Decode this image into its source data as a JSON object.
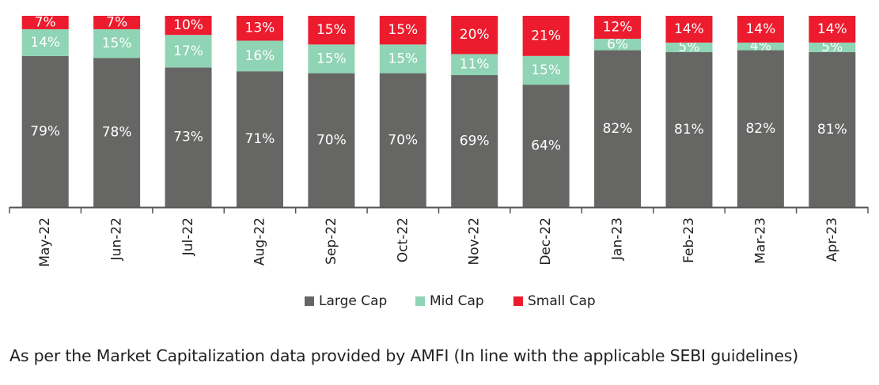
{
  "colors": {
    "large_cap": "#666665",
    "mid_cap": "#8fd4b4",
    "small_cap": "#ec1c2e",
    "axis": "#555555"
  },
  "chart_data": {
    "type": "bar",
    "stacked": true,
    "percent_stacked": true,
    "categories": [
      "May-22",
      "Jun-22",
      "Jul-22",
      "Aug-22",
      "Sep-22",
      "Oct-22",
      "Nov-22",
      "Dec-22",
      "Jan-23",
      "Feb-23",
      "Mar-23",
      "Apr-23"
    ],
    "series": [
      {
        "name": "Large Cap",
        "values": [
          79,
          78,
          73,
          71,
          70,
          70,
          69,
          64,
          82,
          81,
          82,
          81
        ]
      },
      {
        "name": "Mid Cap",
        "values": [
          14,
          15,
          17,
          16,
          15,
          15,
          11,
          15,
          6,
          5,
          4,
          5
        ]
      },
      {
        "name": "Small Cap",
        "values": [
          7,
          7,
          10,
          13,
          15,
          15,
          20,
          21,
          12,
          14,
          14,
          14
        ]
      }
    ],
    "ylim": [
      0,
      100
    ],
    "grid": false,
    "legend_position": "bottom",
    "xlabel_rotation": "vertical"
  },
  "footnote": "As per the Market Capitalization data provided by AMFI (In line with the applicable SEBI guidelines)"
}
